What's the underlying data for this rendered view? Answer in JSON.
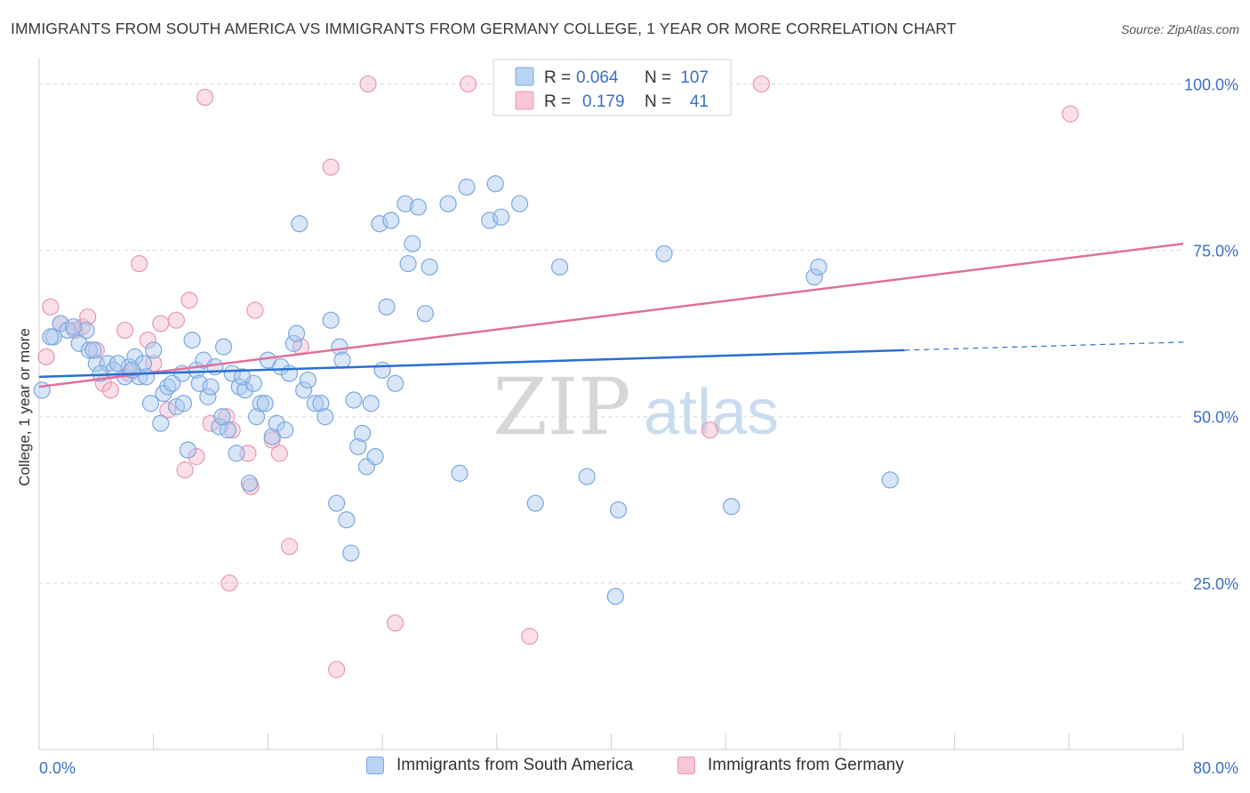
{
  "header": {
    "title": "IMMIGRANTS FROM SOUTH AMERICA VS IMMIGRANTS FROM GERMANY COLLEGE, 1 YEAR OR MORE CORRELATION CHART",
    "source": "Source: ZipAtlas.com"
  },
  "watermark": {
    "zip": "ZIP",
    "atlas": "atlas"
  },
  "legend": {
    "rows": [
      {
        "r_label": "R =",
        "r_value": "0.064",
        "n_label": "N =",
        "n_value": "107"
      },
      {
        "r_label": "R =",
        "r_value": "0.179",
        "n_label": "N =",
        "n_value": "41"
      }
    ]
  },
  "colors": {
    "blue_fill": "#a9c8f0",
    "blue_stroke": "#7aa9e0",
    "blue_line": "#2b6fd1",
    "pink_fill": "#f5b8cc",
    "pink_stroke": "#e898b2",
    "pink_line": "#e0709a",
    "value_text": "#3a6fc9",
    "grid": "#d8d8d8"
  },
  "chart_data": {
    "type": "scatter",
    "title": "IMMIGRANTS FROM SOUTH AMERICA VS IMMIGRANTS FROM GERMANY COLLEGE, 1 YEAR OR MORE CORRELATION CHART",
    "xlabel": "",
    "ylabel": "College, 1 year or more",
    "xlim": [
      0,
      80
    ],
    "ylim": [
      0,
      103
    ],
    "x_tick_labels": [
      "0.0%",
      "80.0%"
    ],
    "y_tick_labels": [
      "25.0%",
      "50.0%",
      "75.0%",
      "100.0%"
    ],
    "y_ticks": [
      25,
      50,
      75,
      100
    ],
    "grid": true,
    "legend_position": "top-center",
    "series": [
      {
        "name": "Immigrants from South America",
        "r": 0.064,
        "n": 107,
        "trend": {
          "x0": 0,
          "y0": 56.0,
          "x1": 60.5,
          "y1": 60.0,
          "dash_x1": 80,
          "dash_y1": 61.2
        },
        "points": [
          [
            0.2,
            54
          ],
          [
            1,
            62
          ],
          [
            1.5,
            64
          ],
          [
            2,
            63
          ],
          [
            2.8,
            61
          ],
          [
            3.5,
            60
          ],
          [
            4,
            58
          ],
          [
            4.8,
            58
          ],
          [
            5.2,
            57
          ],
          [
            6,
            56
          ],
          [
            3.3,
            63
          ],
          [
            4.3,
            56.5
          ],
          [
            6.3,
            57.5
          ],
          [
            6.7,
            59
          ],
          [
            7,
            56
          ],
          [
            7.3,
            58
          ],
          [
            7.8,
            52
          ],
          [
            8,
            60
          ],
          [
            8.5,
            49
          ],
          [
            8.7,
            53.5
          ],
          [
            9,
            54.5
          ],
          [
            9.6,
            51.5
          ],
          [
            10,
            56.5
          ],
          [
            10.4,
            45
          ],
          [
            10.7,
            61.5
          ],
          [
            11,
            57
          ],
          [
            11.2,
            55
          ],
          [
            11.5,
            58.5
          ],
          [
            11.8,
            53
          ],
          [
            12,
            54.5
          ],
          [
            12.3,
            57.5
          ],
          [
            12.6,
            48.5
          ],
          [
            12.9,
            60.5
          ],
          [
            13.2,
            48
          ],
          [
            13.5,
            56.5
          ],
          [
            13.8,
            44.5
          ],
          [
            14,
            54.5
          ],
          [
            14.4,
            54
          ],
          [
            14.7,
            40
          ],
          [
            15,
            55
          ],
          [
            15.2,
            50
          ],
          [
            15.5,
            52
          ],
          [
            15.8,
            52
          ],
          [
            16,
            58.5
          ],
          [
            16.3,
            47
          ],
          [
            16.6,
            49
          ],
          [
            16.9,
            57.5
          ],
          [
            17.2,
            48
          ],
          [
            17.5,
            56.5
          ],
          [
            17.8,
            61
          ],
          [
            18,
            62.5
          ],
          [
            18.2,
            79
          ],
          [
            18.5,
            54
          ],
          [
            18.8,
            55.5
          ],
          [
            19.3,
            52
          ],
          [
            19.7,
            52
          ],
          [
            20,
            50
          ],
          [
            20.4,
            64.5
          ],
          [
            20.8,
            37
          ],
          [
            21,
            60.5
          ],
          [
            21.2,
            58.5
          ],
          [
            21.5,
            34.5
          ],
          [
            21.8,
            29.5
          ],
          [
            22,
            52.5
          ],
          [
            22.3,
            45.5
          ],
          [
            22.6,
            47.5
          ],
          [
            22.9,
            42.5
          ],
          [
            23.2,
            52
          ],
          [
            23.5,
            44
          ],
          [
            23.8,
            79
          ],
          [
            24,
            57
          ],
          [
            24.3,
            66.5
          ],
          [
            24.6,
            79.5
          ],
          [
            24.9,
            55
          ],
          [
            25.6,
            82
          ],
          [
            25.8,
            73
          ],
          [
            26.1,
            76
          ],
          [
            26.5,
            81.5
          ],
          [
            27,
            65.5
          ],
          [
            27.3,
            72.5
          ],
          [
            28.6,
            82
          ],
          [
            29.4,
            41.5
          ],
          [
            29.9,
            84.5
          ],
          [
            31.5,
            79.5
          ],
          [
            31.9,
            85
          ],
          [
            32.3,
            80
          ],
          [
            33.6,
            82
          ],
          [
            34.7,
            37
          ],
          [
            36.4,
            72.5
          ],
          [
            38.3,
            41
          ],
          [
            40.3,
            23
          ],
          [
            40.5,
            36
          ],
          [
            43.7,
            74.5
          ],
          [
            48.4,
            36.5
          ],
          [
            54.2,
            71
          ],
          [
            54.5,
            72.5
          ],
          [
            59.5,
            40.5
          ],
          [
            0.8,
            62
          ],
          [
            2.4,
            63.5
          ],
          [
            3.8,
            60
          ],
          [
            5.5,
            58
          ],
          [
            6.5,
            57
          ],
          [
            7.5,
            56
          ],
          [
            9.3,
            55
          ],
          [
            10.1,
            52
          ],
          [
            12.8,
            50
          ],
          [
            14.2,
            56
          ]
        ]
      },
      {
        "name": "Immigrants from Germany",
        "r": 0.179,
        "n": 41,
        "trend": {
          "x0": 0,
          "y0": 54.5,
          "x1": 80,
          "y1": 76.0
        },
        "points": [
          [
            0.5,
            59
          ],
          [
            0.8,
            66.5
          ],
          [
            1.5,
            64
          ],
          [
            2.5,
            63
          ],
          [
            3,
            63.5
          ],
          [
            3.4,
            65
          ],
          [
            4,
            60
          ],
          [
            4.5,
            55
          ],
          [
            5,
            54
          ],
          [
            6,
            63
          ],
          [
            6.3,
            56.5
          ],
          [
            7,
            73
          ],
          [
            7.6,
            61.5
          ],
          [
            8,
            58
          ],
          [
            8.5,
            64
          ],
          [
            9,
            51
          ],
          [
            9.6,
            64.5
          ],
          [
            10.2,
            42
          ],
          [
            10.5,
            67.5
          ],
          [
            11,
            44
          ],
          [
            11.6,
            98
          ],
          [
            12,
            49
          ],
          [
            13.1,
            50
          ],
          [
            13.3,
            25
          ],
          [
            13.5,
            48
          ],
          [
            14.6,
            44.5
          ],
          [
            14.8,
            39.5
          ],
          [
            15.1,
            66
          ],
          [
            16.3,
            46.5
          ],
          [
            16.8,
            44.5
          ],
          [
            17.5,
            30.5
          ],
          [
            18.3,
            60.5
          ],
          [
            20.4,
            87.5
          ],
          [
            20.8,
            12
          ],
          [
            23,
            100
          ],
          [
            24.9,
            19
          ],
          [
            30,
            100
          ],
          [
            34.3,
            17
          ],
          [
            46.9,
            48
          ],
          [
            50.5,
            100
          ],
          [
            72.1,
            95.5
          ]
        ]
      }
    ]
  }
}
